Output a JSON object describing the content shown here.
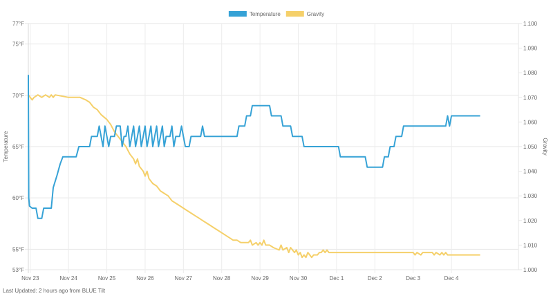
{
  "footer": {
    "prefix": "Last Updated: ",
    "time_ago": "2 hours ago",
    "middle": " from ",
    "tilt_name": "BLUE Tilt"
  },
  "chart_data": {
    "type": "line",
    "title": "",
    "legend": {
      "placement": "top-center",
      "entries": [
        "Temperature",
        "Gravity"
      ]
    },
    "x": {
      "label": "",
      "unit": "days since Nov 22 00:00",
      "range": [
        0.95,
        13.75
      ],
      "ticks": [
        {
          "value": 1.0,
          "label": "Nov 23"
        },
        {
          "value": 2.0,
          "label": "Nov 24"
        },
        {
          "value": 3.0,
          "label": "Nov 25"
        },
        {
          "value": 4.0,
          "label": "Nov 26"
        },
        {
          "value": 5.0,
          "label": "Nov 27"
        },
        {
          "value": 6.0,
          "label": "Nov 28"
        },
        {
          "value": 7.0,
          "label": "Nov 29"
        },
        {
          "value": 8.0,
          "label": "Nov 30"
        },
        {
          "value": 9.0,
          "label": "Dec 1"
        },
        {
          "value": 10.0,
          "label": "Dec 2"
        },
        {
          "value": 11.0,
          "label": "Dec 3"
        },
        {
          "value": 12.0,
          "label": "Dec 4"
        }
      ],
      "gridlines": [
        0.95,
        1.0,
        2.0,
        3.0,
        4.0,
        5.0,
        6.0,
        7.0,
        8.0,
        9.0,
        10.0,
        11.0,
        12.0
      ]
    },
    "y_left": {
      "label": "Temperature",
      "range": [
        53,
        77
      ],
      "ticks": [
        {
          "value": 77,
          "label": "77°F"
        },
        {
          "value": 75,
          "label": "75°F"
        },
        {
          "value": 70,
          "label": "70°F"
        },
        {
          "value": 65,
          "label": "65°F"
        },
        {
          "value": 60,
          "label": "60°F"
        },
        {
          "value": 55,
          "label": "55°F"
        },
        {
          "value": 53,
          "label": "53°F"
        }
      ]
    },
    "y_right": {
      "label": "Gravity",
      "range": [
        1.0,
        1.1
      ],
      "ticks": [
        {
          "value": 1.1,
          "label": "1.100"
        },
        {
          "value": 1.09,
          "label": "1.090"
        },
        {
          "value": 1.08,
          "label": "1.080"
        },
        {
          "value": 1.07,
          "label": "1.070"
        },
        {
          "value": 1.06,
          "label": "1.060"
        },
        {
          "value": 1.05,
          "label": "1.050"
        },
        {
          "value": 1.04,
          "label": "1.040"
        },
        {
          "value": 1.03,
          "label": "1.030"
        },
        {
          "value": 1.02,
          "label": "1.020"
        },
        {
          "value": 1.01,
          "label": "1.010"
        },
        {
          "value": 1.0,
          "label": "1.000"
        }
      ]
    },
    "series": [
      {
        "name": "Temperature",
        "axis": "left",
        "color": "#36a2d6",
        "points": [
          [
            0.95,
            72
          ],
          [
            0.96,
            60
          ],
          [
            0.98,
            59.2
          ],
          [
            1.05,
            59
          ],
          [
            1.15,
            59
          ],
          [
            1.2,
            58
          ],
          [
            1.3,
            58
          ],
          [
            1.35,
            59
          ],
          [
            1.55,
            59
          ],
          [
            1.6,
            61
          ],
          [
            1.7,
            62.2
          ],
          [
            1.78,
            63.3
          ],
          [
            1.85,
            64
          ],
          [
            2.0,
            64
          ],
          [
            2.1,
            64
          ],
          [
            2.2,
            64
          ],
          [
            2.27,
            65
          ],
          [
            2.45,
            65
          ],
          [
            2.55,
            65
          ],
          [
            2.6,
            66
          ],
          [
            2.75,
            66
          ],
          [
            2.8,
            67
          ],
          [
            2.9,
            65
          ],
          [
            2.95,
            67
          ],
          [
            3.0,
            66
          ],
          [
            3.05,
            65
          ],
          [
            3.1,
            66
          ],
          [
            3.2,
            66
          ],
          [
            3.25,
            67
          ],
          [
            3.35,
            67
          ],
          [
            3.4,
            65
          ],
          [
            3.45,
            66
          ],
          [
            3.5,
            66
          ],
          [
            3.55,
            67
          ],
          [
            3.6,
            65
          ],
          [
            3.65,
            66
          ],
          [
            3.7,
            67
          ],
          [
            3.75,
            65
          ],
          [
            3.8,
            66
          ],
          [
            3.85,
            67
          ],
          [
            3.9,
            65
          ],
          [
            3.95,
            66
          ],
          [
            4.0,
            67
          ],
          [
            4.05,
            65
          ],
          [
            4.1,
            66
          ],
          [
            4.15,
            67
          ],
          [
            4.2,
            65
          ],
          [
            4.25,
            66
          ],
          [
            4.3,
            67
          ],
          [
            4.35,
            65
          ],
          [
            4.4,
            66
          ],
          [
            4.45,
            67
          ],
          [
            4.5,
            65
          ],
          [
            4.55,
            66
          ],
          [
            4.65,
            66
          ],
          [
            4.7,
            67
          ],
          [
            4.75,
            65
          ],
          [
            4.8,
            66
          ],
          [
            4.9,
            66
          ],
          [
            4.95,
            67
          ],
          [
            5.0,
            66
          ],
          [
            5.05,
            65
          ],
          [
            5.15,
            65
          ],
          [
            5.2,
            66
          ],
          [
            5.45,
            66
          ],
          [
            5.5,
            67
          ],
          [
            5.55,
            66
          ],
          [
            6.3,
            66
          ],
          [
            6.4,
            66
          ],
          [
            6.45,
            67
          ],
          [
            6.6,
            67
          ],
          [
            6.65,
            68
          ],
          [
            6.75,
            68
          ],
          [
            6.8,
            69
          ],
          [
            6.95,
            69
          ],
          [
            7.0,
            69
          ],
          [
            7.15,
            69
          ],
          [
            7.25,
            69
          ],
          [
            7.3,
            68
          ],
          [
            7.55,
            68
          ],
          [
            7.6,
            67
          ],
          [
            7.8,
            67
          ],
          [
            7.85,
            66
          ],
          [
            8.1,
            66
          ],
          [
            8.15,
            65
          ],
          [
            8.6,
            65
          ],
          [
            8.95,
            65
          ],
          [
            9.05,
            65
          ],
          [
            9.1,
            64
          ],
          [
            9.75,
            64
          ],
          [
            9.8,
            63
          ],
          [
            10.2,
            63
          ],
          [
            10.25,
            64
          ],
          [
            10.35,
            64
          ],
          [
            10.4,
            65
          ],
          [
            10.5,
            65
          ],
          [
            10.55,
            66
          ],
          [
            10.7,
            66
          ],
          [
            10.75,
            67
          ],
          [
            11.85,
            67
          ],
          [
            11.9,
            68
          ],
          [
            11.95,
            67
          ],
          [
            12.0,
            68
          ],
          [
            12.3,
            68
          ],
          [
            12.5,
            68
          ],
          [
            12.6,
            68
          ],
          [
            12.75,
            68
          ]
        ]
      },
      {
        "name": "Gravity",
        "axis": "right",
        "color": "#f5d06a",
        "points": [
          [
            0.95,
            1.071
          ],
          [
            1.05,
            1.069
          ],
          [
            1.1,
            1.07
          ],
          [
            1.2,
            1.071
          ],
          [
            1.3,
            1.07
          ],
          [
            1.4,
            1.071
          ],
          [
            1.5,
            1.07
          ],
          [
            1.55,
            1.071
          ],
          [
            1.6,
            1.07
          ],
          [
            1.65,
            1.071
          ],
          [
            2.0,
            1.07
          ],
          [
            2.3,
            1.07
          ],
          [
            2.45,
            1.069
          ],
          [
            2.55,
            1.068
          ],
          [
            2.65,
            1.066
          ],
          [
            2.75,
            1.065
          ],
          [
            2.85,
            1.063
          ],
          [
            3.0,
            1.061
          ],
          [
            3.1,
            1.059
          ],
          [
            3.2,
            1.056
          ],
          [
            3.3,
            1.054
          ],
          [
            3.4,
            1.052
          ],
          [
            3.5,
            1.05
          ],
          [
            3.6,
            1.047
          ],
          [
            3.7,
            1.045
          ],
          [
            3.75,
            1.043
          ],
          [
            3.8,
            1.045
          ],
          [
            3.85,
            1.042
          ],
          [
            3.95,
            1.04
          ],
          [
            4.0,
            1.038
          ],
          [
            4.05,
            1.04
          ],
          [
            4.1,
            1.037
          ],
          [
            4.2,
            1.035
          ],
          [
            4.3,
            1.034
          ],
          [
            4.4,
            1.032
          ],
          [
            4.5,
            1.031
          ],
          [
            4.6,
            1.03
          ],
          [
            4.7,
            1.028
          ],
          [
            4.8,
            1.027
          ],
          [
            4.9,
            1.026
          ],
          [
            5.0,
            1.025
          ],
          [
            5.1,
            1.024
          ],
          [
            5.2,
            1.023
          ],
          [
            5.3,
            1.022
          ],
          [
            5.4,
            1.021
          ],
          [
            5.5,
            1.02
          ],
          [
            5.6,
            1.019
          ],
          [
            5.7,
            1.018
          ],
          [
            5.8,
            1.017
          ],
          [
            5.9,
            1.016
          ],
          [
            6.0,
            1.015
          ],
          [
            6.1,
            1.014
          ],
          [
            6.2,
            1.013
          ],
          [
            6.3,
            1.012
          ],
          [
            6.4,
            1.012
          ],
          [
            6.5,
            1.011
          ],
          [
            6.6,
            1.011
          ],
          [
            6.7,
            1.011
          ],
          [
            6.75,
            1.012
          ],
          [
            6.8,
            1.01
          ],
          [
            6.9,
            1.011
          ],
          [
            6.95,
            1.01
          ],
          [
            7.0,
            1.011
          ],
          [
            7.05,
            1.01
          ],
          [
            7.1,
            1.012
          ],
          [
            7.15,
            1.01
          ],
          [
            7.25,
            1.01
          ],
          [
            7.35,
            1.009
          ],
          [
            7.5,
            1.008
          ],
          [
            7.55,
            1.01
          ],
          [
            7.6,
            1.008
          ],
          [
            7.7,
            1.009
          ],
          [
            7.75,
            1.007
          ],
          [
            7.8,
            1.009
          ],
          [
            7.85,
            1.008
          ],
          [
            7.9,
            1.007
          ],
          [
            7.95,
            1.008
          ],
          [
            8.0,
            1.006
          ],
          [
            8.05,
            1.007
          ],
          [
            8.1,
            1.005
          ],
          [
            8.15,
            1.006
          ],
          [
            8.2,
            1.005
          ],
          [
            8.25,
            1.007
          ],
          [
            8.3,
            1.006
          ],
          [
            8.35,
            1.005
          ],
          [
            8.4,
            1.006
          ],
          [
            8.5,
            1.006
          ],
          [
            8.55,
            1.007
          ],
          [
            8.6,
            1.007
          ],
          [
            8.65,
            1.008
          ],
          [
            8.7,
            1.007
          ],
          [
            8.75,
            1.008
          ],
          [
            8.8,
            1.007
          ],
          [
            8.9,
            1.007
          ],
          [
            9.0,
            1.007
          ],
          [
            10.0,
            1.007
          ],
          [
            11.0,
            1.007
          ],
          [
            11.05,
            1.006
          ],
          [
            11.1,
            1.007
          ],
          [
            11.2,
            1.006
          ],
          [
            11.25,
            1.007
          ],
          [
            11.5,
            1.007
          ],
          [
            11.55,
            1.006
          ],
          [
            11.6,
            1.007
          ],
          [
            11.7,
            1.006
          ],
          [
            11.75,
            1.007
          ],
          [
            11.8,
            1.006
          ],
          [
            11.85,
            1.007
          ],
          [
            11.9,
            1.006
          ],
          [
            12.0,
            1.006
          ],
          [
            12.3,
            1.006
          ],
          [
            12.5,
            1.006
          ],
          [
            12.75,
            1.006
          ]
        ]
      }
    ]
  }
}
